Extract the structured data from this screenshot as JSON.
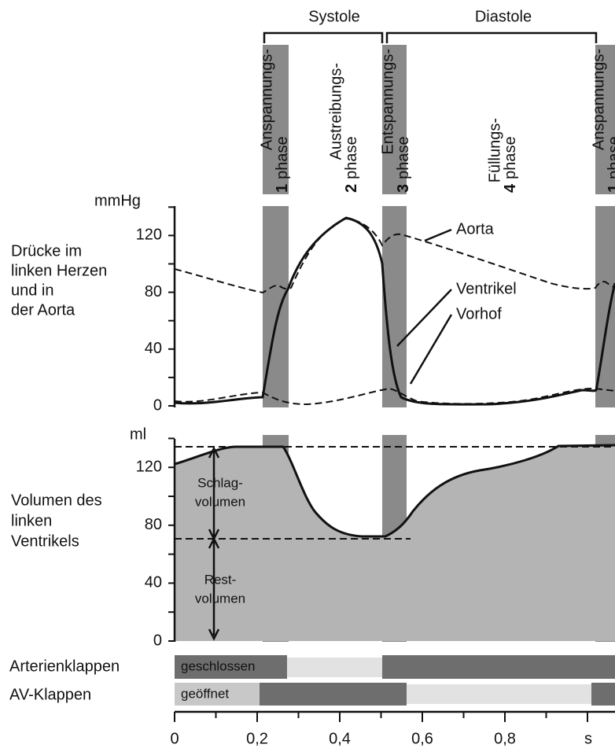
{
  "header": {
    "systole": "Systole",
    "diastole": "Diastole"
  },
  "phases": [
    {
      "number": "1",
      "line1": "Anspannungs-",
      "line2": "phase"
    },
    {
      "number": "2",
      "line1": "Austreibungs-",
      "line2": "phase"
    },
    {
      "number": "3",
      "line1": "Entspannungs-",
      "line2": "phase"
    },
    {
      "number": "4",
      "line1": "Füllungs-",
      "line2": "phase"
    },
    {
      "number": "1",
      "line1": "Anspannungs-",
      "line2": "phase"
    }
  ],
  "pressure": {
    "unit": "mmHg",
    "label": [
      "Drücke im",
      "linken Herzen",
      "und in",
      "der Aorta"
    ],
    "ticks": [
      "0",
      "40",
      "80",
      "120"
    ],
    "curves": {
      "aorta": "Aorta",
      "ventricle": "Ventrikel",
      "atrium": "Vorhof"
    }
  },
  "volume": {
    "unit": "ml",
    "label": [
      "Volumen des",
      "linken",
      "Ventrikels"
    ],
    "ticks": [
      "0",
      "40",
      "80",
      "120"
    ],
    "stroke": [
      "Schlag-",
      "volumen"
    ],
    "residual": [
      "Rest-",
      "volumen"
    ]
  },
  "valves": {
    "arterial": "Arterienklappen",
    "arterial_state": "geschlossen",
    "av": "AV-Klappen",
    "av_state": "geöffnet"
  },
  "time": {
    "ticks": [
      "0",
      "0,2",
      "0,4",
      "0,6",
      "0,8"
    ],
    "unit": "s"
  }
}
